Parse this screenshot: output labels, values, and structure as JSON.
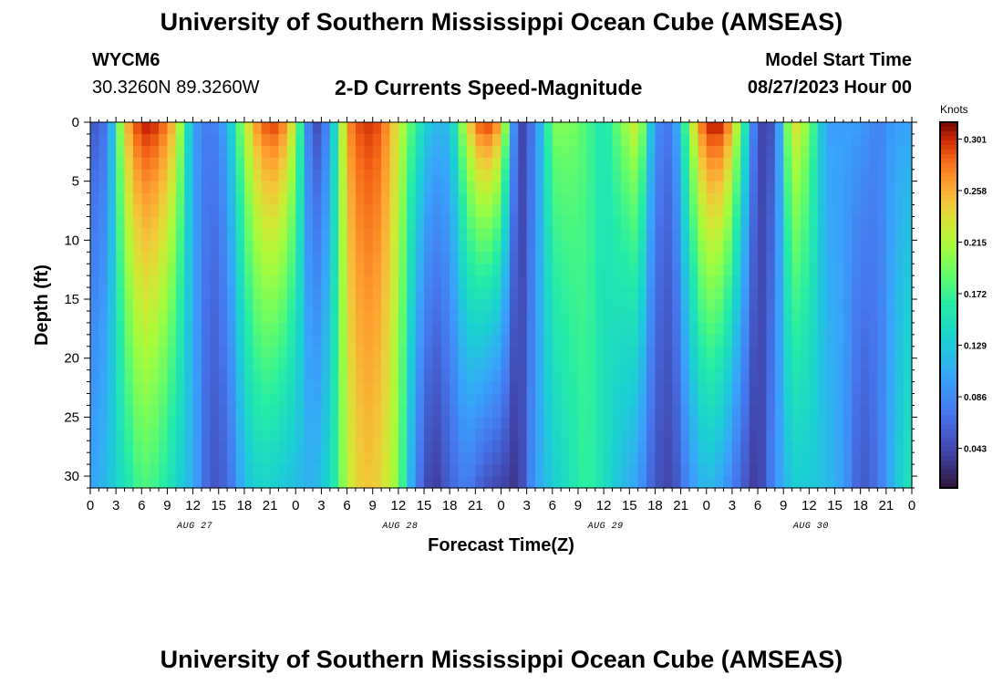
{
  "header": {
    "title": "University of Southern Mississippi Ocean Cube (AMSEAS)",
    "station": "WYCM6",
    "coordinates": "30.3260N  89.3260W",
    "subtitle": "2-D Currents Speed-Magnitude",
    "model_start_label": "Model Start Time",
    "model_start_value": "08/27/2023 Hour 00"
  },
  "footer": {
    "title": "University of Southern Mississippi Ocean Cube (AMSEAS)"
  },
  "colorbar": {
    "units": "Knots",
    "ticks": [
      "0.301",
      "0.258",
      "0.215",
      "0.172",
      "0.129",
      "0.086",
      "0.043"
    ],
    "min": 0.01,
    "max": 0.315
  },
  "chart_data": {
    "type": "heatmap",
    "title": "2-D Currents Speed-Magnitude",
    "xlabel": "Forecast Time(Z)",
    "ylabel": "Depth (ft)",
    "x_hour_ticks": [
      "0",
      "3",
      "6",
      "9",
      "12",
      "15",
      "18",
      "21",
      "0",
      "3",
      "6",
      "9",
      "12",
      "15",
      "18",
      "21",
      "0",
      "3",
      "6",
      "9",
      "12",
      "15",
      "18",
      "21",
      "0",
      "3",
      "6",
      "9",
      "12",
      "15",
      "18",
      "21",
      "0"
    ],
    "x_day_labels": [
      "AUG 27",
      "AUG 28",
      "AUG 29",
      "AUG 30"
    ],
    "x_range_hours": [
      0,
      96
    ],
    "y_ticks": [
      "0",
      "5",
      "10",
      "15",
      "20",
      "25",
      "30"
    ],
    "y_range_ft": [
      0,
      31
    ],
    "speed_units": "knots",
    "speed_range": [
      0.01,
      0.315
    ],
    "time_steps_hours": [
      0,
      2,
      4,
      6,
      8,
      10,
      12,
      14,
      16,
      18,
      20,
      22,
      24,
      26,
      28,
      30,
      32,
      34,
      36,
      38,
      40,
      42,
      44,
      46,
      48,
      50,
      52,
      54,
      56,
      58,
      60,
      62,
      64,
      66,
      68,
      70,
      72,
      74,
      76,
      78,
      80,
      82,
      84,
      86,
      88,
      90,
      92,
      94,
      96
    ],
    "surface_speed_knots": [
      0.05,
      0.07,
      0.25,
      0.31,
      0.3,
      0.25,
      0.1,
      0.07,
      0.11,
      0.22,
      0.29,
      0.3,
      0.22,
      0.03,
      0.09,
      0.27,
      0.3,
      0.29,
      0.23,
      0.17,
      0.12,
      0.12,
      0.24,
      0.31,
      0.27,
      0.03,
      0.08,
      0.2,
      0.2,
      0.18,
      0.15,
      0.2,
      0.24,
      0.09,
      0.07,
      0.21,
      0.31,
      0.31,
      0.2,
      0.04,
      0.05,
      0.25,
      0.2,
      0.1,
      0.1,
      0.1,
      0.08,
      0.1,
      0.1
    ],
    "bottom_speed_knots": [
      0.1,
      0.12,
      0.15,
      0.18,
      0.17,
      0.14,
      0.11,
      0.05,
      0.06,
      0.12,
      0.14,
      0.13,
      0.12,
      0.11,
      0.14,
      0.22,
      0.25,
      0.24,
      0.2,
      0.08,
      0.03,
      0.06,
      0.08,
      0.05,
      0.04,
      0.03,
      0.1,
      0.13,
      0.15,
      0.17,
      0.15,
      0.12,
      0.1,
      0.05,
      0.04,
      0.09,
      0.12,
      0.1,
      0.06,
      0.03,
      0.09,
      0.13,
      0.13,
      0.12,
      0.1,
      0.05,
      0.07,
      0.12,
      0.16
    ]
  }
}
